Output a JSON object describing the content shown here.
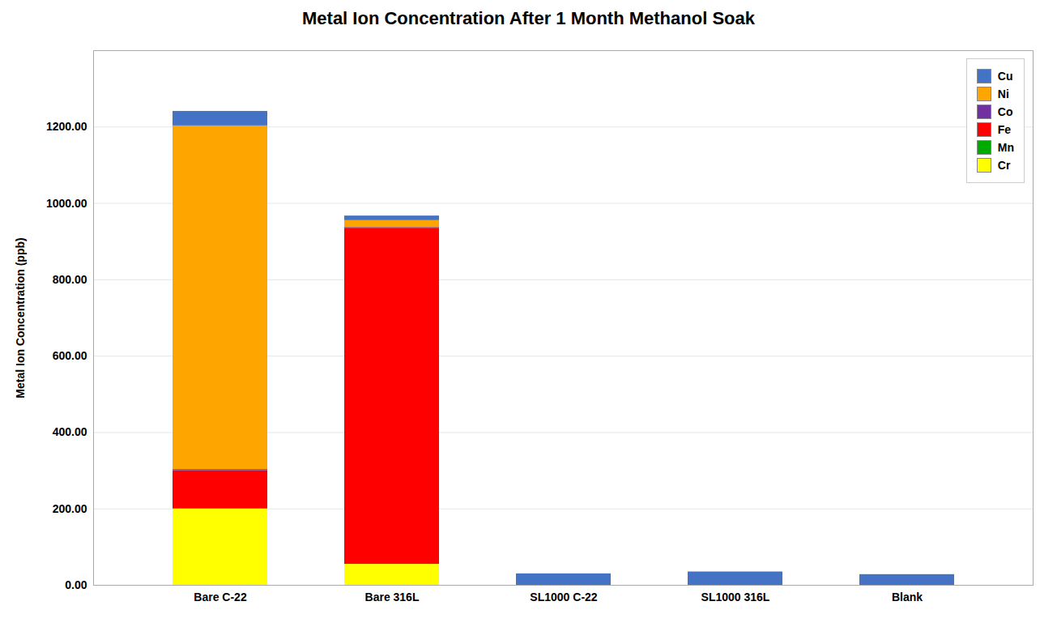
{
  "chart_data": {
    "type": "bar",
    "stacked": true,
    "title": "Metal Ion Concentration After 1 Month Methanol Soak",
    "ylabel": "Metal Ion Concentration (ppb)",
    "categories": [
      "Bare C-22",
      "Bare 316L",
      "SL1000 C-22",
      "SL1000 316L",
      "Blank"
    ],
    "series": [
      {
        "name": "Cr",
        "color": "#FFFF00",
        "values": [
          200.0,
          55.0,
          0.0,
          0.0,
          0.0
        ]
      },
      {
        "name": "Mn",
        "color": "#00AA00",
        "values": [
          0.0,
          0.0,
          0.0,
          0.0,
          0.0
        ]
      },
      {
        "name": "Fe",
        "color": "#FF0000",
        "values": [
          100.0,
          880.0,
          0.0,
          0.0,
          0.0
        ]
      },
      {
        "name": "Co",
        "color": "#7030A0",
        "values": [
          3.0,
          2.0,
          0.0,
          0.0,
          0.0
        ]
      },
      {
        "name": "Ni",
        "color": "#FFA500",
        "values": [
          900.0,
          18.0,
          0.0,
          0.0,
          0.0
        ]
      },
      {
        "name": "Cu",
        "color": "#4472C4",
        "values": [
          38.0,
          12.0,
          30.0,
          35.0,
          28.0
        ]
      }
    ],
    "ylim": [
      0,
      1400
    ],
    "yticks": [
      {
        "value": 0,
        "label": "0.00"
      },
      {
        "value": 200,
        "label": "200.00"
      },
      {
        "value": 400,
        "label": "400.00"
      },
      {
        "value": 600,
        "label": "600.00"
      },
      {
        "value": 800,
        "label": "800.00"
      },
      {
        "value": 1000,
        "label": "1000.00"
      },
      {
        "value": 1200,
        "label": "1200.00"
      }
    ],
    "grid": true,
    "legend": "upper right"
  }
}
